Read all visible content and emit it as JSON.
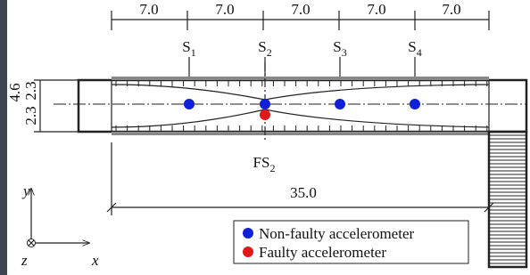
{
  "dimensions": {
    "spans": [
      "7.0",
      "7.0",
      "7.0",
      "7.0",
      "7.0"
    ],
    "total": "35.0",
    "height": "4.6",
    "half_heights": [
      "2.3",
      "2.3"
    ]
  },
  "sensors": [
    {
      "main": "S",
      "sub": "1"
    },
    {
      "main": "S",
      "sub": "2"
    },
    {
      "main": "S",
      "sub": "3"
    },
    {
      "main": "S",
      "sub": "4"
    }
  ],
  "faulty_sensor": {
    "main": "FS",
    "sub": "2"
  },
  "axes": {
    "y": "y",
    "z": "z",
    "x": "x"
  },
  "legend": {
    "non_faulty": "Non-faulty accelerometer",
    "faulty": "Faulty accelerometer"
  }
}
